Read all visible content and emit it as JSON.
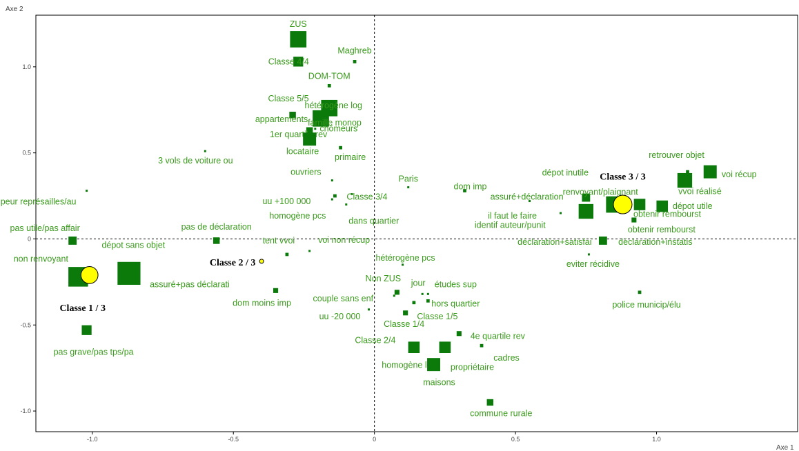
{
  "chart_data": {
    "type": "scatter",
    "xlabel": "Axe 1",
    "ylabel": "Axe 2",
    "xlim": [
      -1.2,
      1.5
    ],
    "ylim": [
      -1.12,
      1.3
    ],
    "x_ticks": [
      -1.0,
      -0.5,
      0,
      0.5,
      1.0
    ],
    "x_tick_labels": [
      "-1.0",
      "-0.5",
      "0",
      "0.5",
      "1.0"
    ],
    "y_ticks": [
      -1.0,
      -0.5,
      0,
      0.5,
      1.0
    ],
    "y_tick_labels": [
      "-1.0",
      "-0.5",
      "0",
      "0.5",
      "1.0"
    ],
    "colors": {
      "points": "#0b7a0b",
      "labels": "#3a9a1c",
      "class_fill": "#ffff00",
      "class_stroke": "#000000"
    },
    "points": [
      {
        "label": "ZUS",
        "x": -0.27,
        "y": 1.16,
        "w": 0.1
      },
      {
        "label": "Maghreb",
        "x": -0.07,
        "y": 1.03,
        "w": 0.02
      },
      {
        "label": "Classe 4/4",
        "x": -0.27,
        "y": 1.03,
        "w": 0.06
      },
      {
        "label": "DOM-TOM",
        "x": -0.16,
        "y": 0.89,
        "w": 0.02
      },
      {
        "label": "Classe 5/5",
        "x": -0.29,
        "y": 0.72,
        "w": 0.04
      },
      {
        "label": "hétérogène log",
        "x": -0.16,
        "y": 0.76,
        "w": 0.1
      },
      {
        "label": "famille monop",
        "x": -0.19,
        "y": 0.7,
        "w": 0.1
      },
      {
        "label": "appartements",
        "x": -0.29,
        "y": 0.72,
        "w": 0.0
      },
      {
        "label": "1er quartile rev",
        "x": -0.23,
        "y": 0.63,
        "w": 0.04
      },
      {
        "label": "chômeurs",
        "x": -0.21,
        "y": 0.64,
        "w": 0.01
      },
      {
        "label": "locataire",
        "x": -0.23,
        "y": 0.58,
        "w": 0.08
      },
      {
        "label": "primaire",
        "x": -0.12,
        "y": 0.53,
        "w": 0.02
      },
      {
        "label": "3 vols de voiture ou",
        "x": -0.6,
        "y": 0.51,
        "w": 0.01
      },
      {
        "label": "ouvriers",
        "x": -0.15,
        "y": 0.34,
        "w": 0.01
      },
      {
        "label": "uu +100 000",
        "x": -0.14,
        "y": 0.25,
        "w": 0.02
      },
      {
        "label": "Classe 3/4",
        "x": -0.08,
        "y": 0.26,
        "w": 0.01
      },
      {
        "label": "homogène pcs",
        "x": -0.15,
        "y": 0.23,
        "w": 0.01
      },
      {
        "label": "dans quartier",
        "x": -0.1,
        "y": 0.2,
        "w": 0.01
      },
      {
        "label": "Paris",
        "x": 0.12,
        "y": 0.3,
        "w": 0.01
      },
      {
        "label": "dom imp",
        "x": 0.32,
        "y": 0.28,
        "w": 0.02
      },
      {
        "label": "dépot inutile",
        "x": 0.75,
        "y": 0.24,
        "w": 0.05
      },
      {
        "label": "assuré+déclaration",
        "x": 0.55,
        "y": 0.22,
        "w": 0.01
      },
      {
        "label": "il faut le faire",
        "x": 0.66,
        "y": 0.15,
        "w": 0.01
      },
      {
        "label": "identif auteur/punit",
        "x": 0.75,
        "y": 0.16,
        "w": 0.09
      },
      {
        "label": "renvoyant/plaignant",
        "x": 0.85,
        "y": 0.2,
        "w": 0.1
      },
      {
        "label": "retrouver objet",
        "x": 1.11,
        "y": 0.39,
        "w": 0.02
      },
      {
        "label": "voi récup",
        "x": 1.19,
        "y": 0.39,
        "w": 0.08
      },
      {
        "label": "vvoi réalisé",
        "x": 1.1,
        "y": 0.34,
        "w": 0.09
      },
      {
        "label": "dépot utile",
        "x": 1.02,
        "y": 0.19,
        "w": 0.07
      },
      {
        "label": "obtenir rembourst",
        "x": 0.94,
        "y": 0.2,
        "w": 0.07
      },
      {
        "label": "obtenir rembourst",
        "x": 0.92,
        "y": 0.11,
        "w": 0.03
      },
      {
        "label": "déclaration+satisfai",
        "x": 0.81,
        "y": -0.01,
        "w": 0.05
      },
      {
        "label": "déclaration+instatis",
        "x": 0.81,
        "y": -0.01,
        "w": 0.0
      },
      {
        "label": "eviter récidive",
        "x": 0.76,
        "y": -0.09,
        "w": 0.01
      },
      {
        "label": "police municip/élu",
        "x": 0.94,
        "y": -0.31,
        "w": 0.02
      },
      {
        "label": "peur représailles/au",
        "x": -1.02,
        "y": 0.28,
        "w": 0.01
      },
      {
        "label": "pas utile/pas affair",
        "x": -1.07,
        "y": -0.01,
        "w": 0.05
      },
      {
        "label": "dépot sans objet",
        "x": -1.05,
        "y": -0.22,
        "w": 0.12
      },
      {
        "label": "non renvoyant",
        "x": -1.05,
        "y": -0.22,
        "w": 0.0
      },
      {
        "label": "assuré+pas déclarati",
        "x": -0.87,
        "y": -0.2,
        "w": 0.14
      },
      {
        "label": "pas grave/pas tps/pa",
        "x": -1.02,
        "y": -0.53,
        "w": 0.06
      },
      {
        "label": "pas de déclaration",
        "x": -0.56,
        "y": -0.01,
        "w": 0.04
      },
      {
        "label": "tent vvoi",
        "x": -0.31,
        "y": -0.09,
        "w": 0.02
      },
      {
        "label": "voi non récup",
        "x": -0.23,
        "y": -0.07,
        "w": 0.01
      },
      {
        "label": "dom moins imp",
        "x": -0.35,
        "y": -0.3,
        "w": 0.03
      },
      {
        "label": "hétérogène pcs",
        "x": 0.1,
        "y": -0.15,
        "w": 0.01
      },
      {
        "label": "Non ZUS",
        "x": 0.08,
        "y": -0.31,
        "w": 0.03
      },
      {
        "label": "couple sans enf",
        "x": 0.07,
        "y": -0.33,
        "w": 0.01
      },
      {
        "label": "jour",
        "x": 0.17,
        "y": -0.32,
        "w": 0.01
      },
      {
        "label": "études sup",
        "x": 0.19,
        "y": -0.32,
        "w": 0.01
      },
      {
        "label": "hors quartier",
        "x": 0.19,
        "y": -0.36,
        "w": 0.02
      },
      {
        "label": "uu -20 000",
        "x": -0.02,
        "y": -0.41,
        "w": 0.01
      },
      {
        "label": "Classe 1/5",
        "x": 0.14,
        "y": -0.37,
        "w": 0.02
      },
      {
        "label": "Classe 1/4",
        "x": 0.11,
        "y": -0.43,
        "w": 0.03
      },
      {
        "label": "4e quartile rev",
        "x": 0.3,
        "y": -0.55,
        "w": 0.03
      },
      {
        "label": "Classe 2/4",
        "x": 0.14,
        "y": -0.63,
        "w": 0.07
      },
      {
        "label": "homogène log",
        "x": 0.25,
        "y": -0.63,
        "w": 0.07
      },
      {
        "label": "cadres",
        "x": 0.38,
        "y": -0.62,
        "w": 0.02
      },
      {
        "label": "propriétaire",
        "x": 0.21,
        "y": -0.73,
        "w": 0.08
      },
      {
        "label": "maisons",
        "x": 0.21,
        "y": -0.73,
        "w": 0.0
      },
      {
        "label": "commune rurale",
        "x": 0.41,
        "y": -0.95,
        "w": 0.04
      }
    ],
    "classes": [
      {
        "label": "Classe 1 / 3",
        "x": -1.01,
        "y": -0.21,
        "size": 0.055
      },
      {
        "label": "Classe 2 / 3",
        "x": -0.4,
        "y": -0.13,
        "size": 0.01
      },
      {
        "label": "Classe 3 / 3",
        "x": 0.88,
        "y": 0.2,
        "size": 0.06
      }
    ]
  }
}
